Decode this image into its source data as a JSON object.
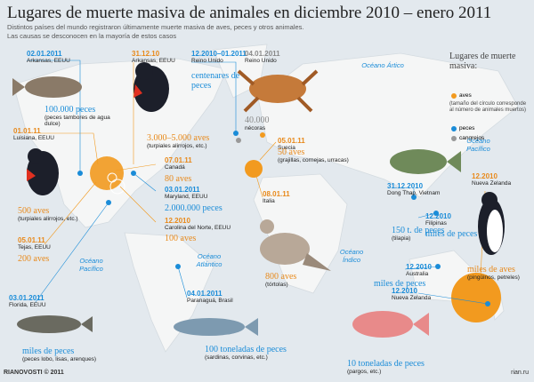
{
  "header": {
    "title": "Lugares de muerte masiva de animales en diciembre 2010 – enero 2011",
    "subtitle": [
      "Distintos países del mundo registraron últimamente muerte masiva de aves, peces y otros animales.",
      "Las causas se desconocen en la mayoría de estos casos"
    ]
  },
  "events": [
    {
      "date": "02.01.2011",
      "place": "Arkansas, EEUU",
      "count": "100.000 peces",
      "note": "(peces tambores de agua dulce)"
    },
    {
      "date": "31.12.10",
      "place": "Arkansas, EEUU",
      "count": "3.000–5.000 aves",
      "note": "(turpiales alirrojos, etc.)"
    },
    {
      "date": "12.2010–01.2011",
      "place": "Reino Unido",
      "count": "centenares de peces"
    },
    {
      "date": "04.01.2011",
      "place": "Reino Unido",
      "count": "40.000",
      "note": "nécoras"
    },
    {
      "date": "01.01.11",
      "place": "Luisiana, EEUU",
      "count": "500 aves",
      "note": "(turpiales alirrojos, etc.)"
    },
    {
      "date": "07.01.11",
      "place": "Canadá",
      "count": "80 aves"
    },
    {
      "date": "03.01.2011",
      "place": "Maryland, EEUU",
      "count": "2.000.000 peces"
    },
    {
      "date": "12.2010",
      "place": "Carolina del Norte, EEUU",
      "count": "100 aves"
    },
    {
      "date": "05.01.11",
      "place": "Suecia",
      "count": "50 aves",
      "note": "(grajillas, cornejas, urracas)"
    },
    {
      "date": "08.01.11",
      "place": "Italia",
      "count": "800 aves",
      "note": "(tórtolas)"
    },
    {
      "date": "05.01.11",
      "place": "Tejas, EEUU",
      "count": "200 aves"
    },
    {
      "date": "03.01.2011",
      "place": "Florida, EEUU",
      "count": "miles de peces",
      "note": "(peces lobo, lisas, arenques)"
    },
    {
      "date": "04.01.2011",
      "place": "Paranaguá, Brasil",
      "count": "100 toneladas de peces",
      "note": "(sardinas, corvinas, etc.)"
    },
    {
      "date": "31.12.2010",
      "place": "Dong Thap, Vietnam",
      "count": "150 t. de peces",
      "note": "(tilapia)"
    },
    {
      "date": "12.2010",
      "place": "Filipinas",
      "count": "miles de peces"
    },
    {
      "date": "12.2010",
      "place": "Australia",
      "count": "miles de peces"
    },
    {
      "date": "12.2010",
      "place": "Nueva Zelanda",
      "count": "10 toneladas de peces",
      "note": "(pargos, etc.)"
    },
    {
      "date": "12.2010",
      "place": "Nueva Zelanda",
      "count": "miles de aves",
      "note": "(pingüinos, petreles)"
    }
  ],
  "oceans": [
    "Océano Ártico",
    "Océano Pacífico",
    "Océano Atlántico",
    "Océano Índico",
    "Océano Pacífico"
  ],
  "legend": {
    "title": "Lugares de muerte masiva:",
    "items": [
      {
        "label": "aves",
        "note": "(tamaño del círculo corresponde al número de animales muertos)"
      },
      {
        "label": "peces"
      },
      {
        "label": "cangrejos"
      }
    ]
  },
  "footer": {
    "credit": "RIANOVOSTI © 2011",
    "url": "rian.ru"
  }
}
